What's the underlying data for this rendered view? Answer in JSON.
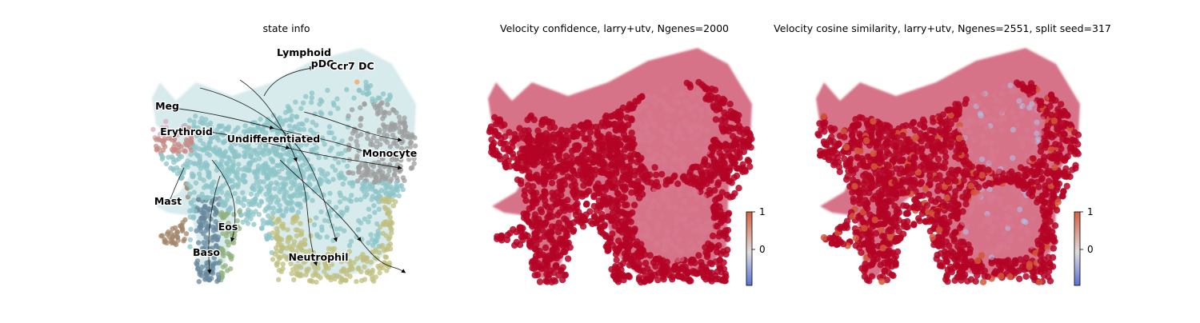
{
  "chart_data": [
    {
      "type": "scatter",
      "title": "state info",
      "xlabel": "",
      "ylabel": "",
      "axes_visible": false,
      "overlay": "velocity stream arrows",
      "legend": "on data",
      "clusters": [
        {
          "name": "Undifferentiated",
          "color": "#8cc4c8"
        },
        {
          "name": "Lymphoid",
          "color": "#d6a7c3"
        },
        {
          "name": "pDC",
          "color": "#e8b4d4"
        },
        {
          "name": "Ccr7 DC",
          "color": "#f4a460"
        },
        {
          "name": "Meg",
          "color": "#dba8bf"
        },
        {
          "name": "Erythroid",
          "color": "#c78a86"
        },
        {
          "name": "Monocyte",
          "color": "#9e9e9e"
        },
        {
          "name": "Mast",
          "color": "#a1866b"
        },
        {
          "name": "Eos",
          "color": "#8fb27e"
        },
        {
          "name": "Baso",
          "color": "#67889e"
        },
        {
          "name": "Neutrophil",
          "color": "#bfbf7e"
        }
      ]
    },
    {
      "type": "scatter",
      "title": "Velocity confidence, larry+utv, Ngenes=2000",
      "xlabel": "",
      "ylabel": "",
      "axes_visible": false,
      "colormap": "coolwarm",
      "colorbar": {
        "ticks": [
          "1",
          "0"
        ],
        "range": [
          -0.8,
          1
        ]
      },
      "dominant_color": "#b40426"
    },
    {
      "type": "scatter",
      "title": "Velocity cosine similarity, larry+utv, Ngenes=2551, split seed=317",
      "xlabel": "",
      "ylabel": "",
      "axes_visible": false,
      "colormap": "coolwarm",
      "colorbar": {
        "ticks": [
          "1",
          "0"
        ],
        "range": [
          -0.8,
          1
        ]
      },
      "dominant_color": "#b40426"
    }
  ]
}
